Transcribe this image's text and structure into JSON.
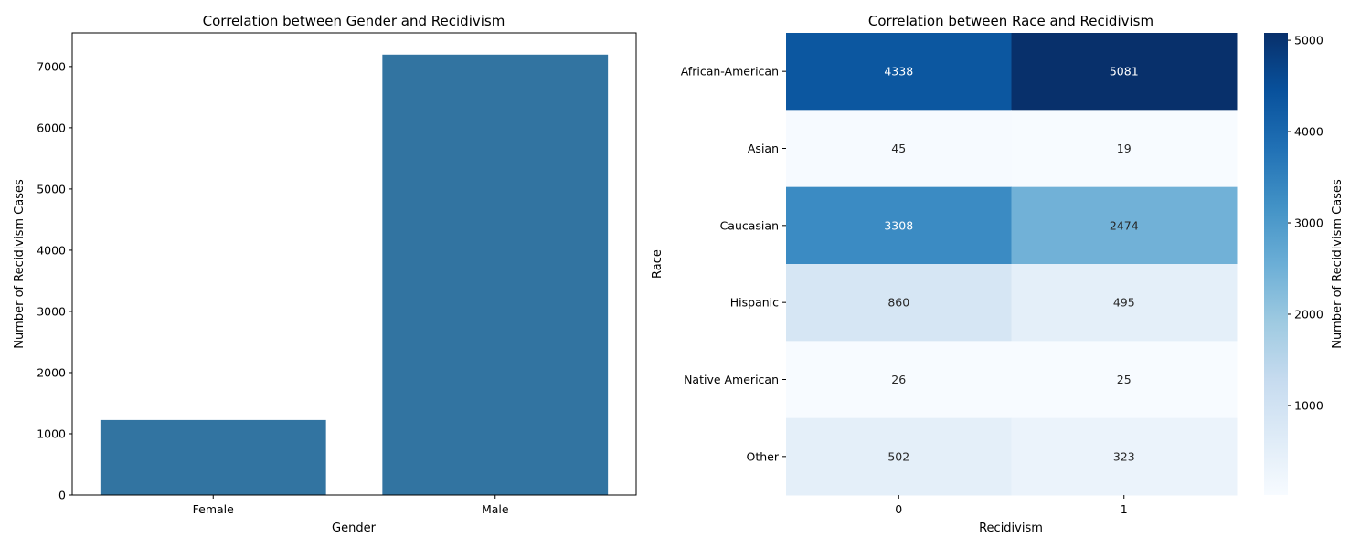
{
  "chart_data": [
    {
      "type": "bar",
      "title": "Correlation between Gender and Recidivism",
      "xlabel": "Gender",
      "ylabel": "Number of Recidivism Cases",
      "categories": [
        "Female",
        "Male"
      ],
      "values": [
        1225,
        7195
      ],
      "ylim": [
        0,
        7550
      ],
      "yticks": [
        0,
        1000,
        2000,
        3000,
        4000,
        5000,
        6000,
        7000
      ],
      "bar_color": "#3274a1",
      "grid": false
    },
    {
      "type": "heatmap",
      "title": "Correlation between Race and Recidivism",
      "xlabel": "Recidivism",
      "ylabel": "Race",
      "x": [
        "0",
        "1"
      ],
      "y": [
        "African-American",
        "Asian",
        "Caucasian",
        "Hispanic",
        "Native American",
        "Other"
      ],
      "values": [
        [
          4338,
          5081
        ],
        [
          45,
          19
        ],
        [
          3308,
          2474
        ],
        [
          860,
          495
        ],
        [
          26,
          25
        ],
        [
          502,
          323
        ]
      ],
      "colormap": "Blues",
      "colorbar": {
        "label": "Number of Recidivism Cases",
        "range": [
          19,
          5081
        ],
        "ticks": [
          1000,
          2000,
          3000,
          4000,
          5000
        ]
      },
      "grid": false
    }
  ]
}
